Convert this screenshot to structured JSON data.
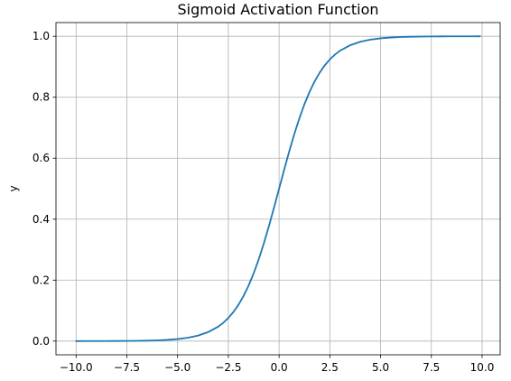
{
  "chart_data": {
    "type": "line",
    "title": "Sigmoid Activation Function",
    "xlabel": "",
    "ylabel": "y",
    "xlim": [
      -10.99,
      10.89
    ],
    "ylim": [
      -0.045,
      1.045
    ],
    "grid": true,
    "x_ticks": [
      -10.0,
      -7.5,
      -5.0,
      -2.5,
      0.0,
      2.5,
      5.0,
      7.5,
      10.0
    ],
    "x_tick_labels": [
      "−10.0",
      "−7.5",
      "−5.0",
      "−2.5",
      "0.0",
      "2.5",
      "5.0",
      "7.5",
      "10.0"
    ],
    "y_ticks": [
      0.0,
      0.2,
      0.4,
      0.6,
      0.8,
      1.0
    ],
    "y_tick_labels": [
      "0.0",
      "0.2",
      "0.4",
      "0.6",
      "0.8",
      "1.0"
    ],
    "series": [
      {
        "color": "#1f77b4",
        "x": [
          -10.0,
          -9.5,
          -9.0,
          -8.5,
          -8.0,
          -7.5,
          -7.0,
          -6.5,
          -6.0,
          -5.5,
          -5.0,
          -4.5,
          -4.0,
          -3.5,
          -3.0,
          -2.75,
          -2.5,
          -2.25,
          -2.0,
          -1.75,
          -1.5,
          -1.25,
          -1.0,
          -0.75,
          -0.5,
          -0.25,
          0.0,
          0.25,
          0.5,
          0.75,
          1.0,
          1.25,
          1.5,
          1.75,
          2.0,
          2.25,
          2.5,
          2.75,
          3.0,
          3.5,
          4.0,
          4.5,
          5.0,
          5.5,
          6.0,
          6.5,
          7.0,
          7.5,
          8.0,
          8.5,
          9.0,
          9.5,
          9.9
        ],
        "y": [
          5e-05,
          7e-05,
          0.00012,
          0.0002,
          0.00034,
          0.00055,
          0.00091,
          0.0015,
          0.00247,
          0.00407,
          0.00669,
          0.01099,
          0.01799,
          0.02931,
          0.04743,
          0.06006,
          0.07586,
          0.09535,
          0.1192,
          0.14805,
          0.18243,
          0.2227,
          0.26894,
          0.32082,
          0.37754,
          0.43782,
          0.5,
          0.56218,
          0.62246,
          0.67918,
          0.73106,
          0.7773,
          0.81757,
          0.85195,
          0.8808,
          0.90465,
          0.92414,
          0.93994,
          0.95257,
          0.97069,
          0.98201,
          0.98901,
          0.99331,
          0.99593,
          0.99753,
          0.9985,
          0.99909,
          0.99945,
          0.99966,
          0.9998,
          0.99988,
          0.99993,
          0.99995
        ]
      }
    ]
  }
}
